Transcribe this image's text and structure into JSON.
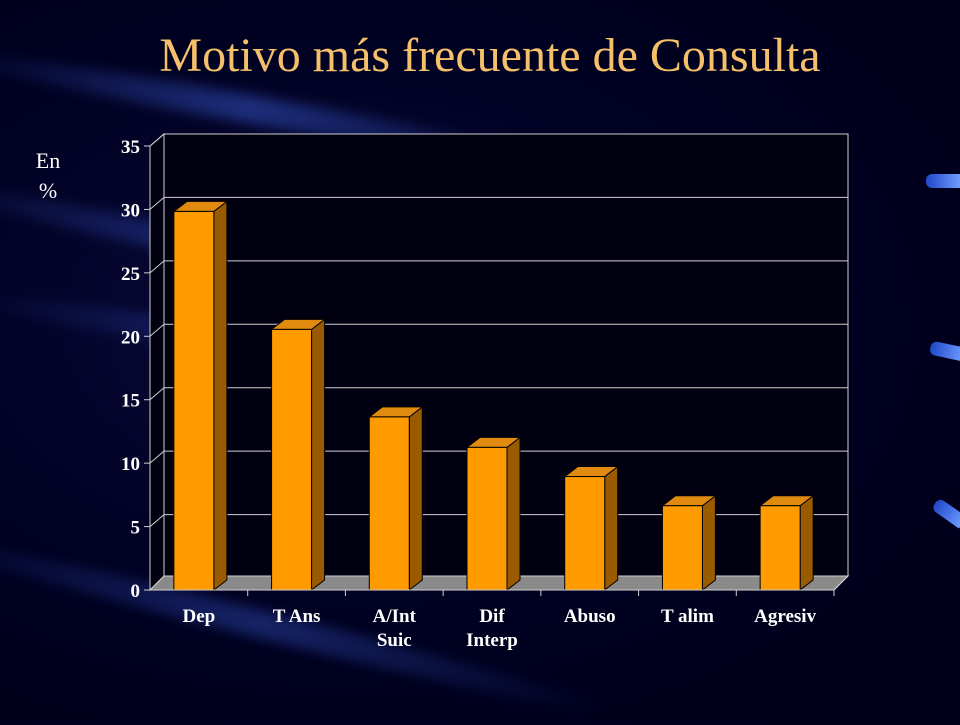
{
  "slide": {
    "title": "Motivo más frecuente de Consulta",
    "ylabel_line1": "En",
    "ylabel_line2": "%"
  },
  "colors": {
    "bar_front": "#ff9a00",
    "bar_top": "#e08a10",
    "bar_side": "#9a5a00",
    "title": "#f4c06a"
  },
  "chart_data": {
    "type": "bar",
    "title": "Motivo más frecuente de Consulta",
    "ylabel": "En %",
    "xlabel": "",
    "categories": [
      "Dep",
      "T Ans",
      "A/Int Suic",
      "Dif Interp",
      "Abuso",
      "T alim",
      "Agresiv"
    ],
    "category_lines": [
      [
        "Dep"
      ],
      [
        "T Ans"
      ],
      [
        "A/Int",
        "Suic"
      ],
      [
        "Dif",
        "Interp"
      ],
      [
        "Abuso"
      ],
      [
        "T alim"
      ],
      [
        "Agresiv"
      ]
    ],
    "values": [
      30,
      20.7,
      13.8,
      11.4,
      9.1,
      6.8,
      6.8
    ],
    "ylim": [
      0,
      35
    ],
    "yticks": [
      0,
      5,
      10,
      15,
      20,
      25,
      30,
      35
    ],
    "grid": true,
    "legend": "none",
    "style": "3d"
  }
}
